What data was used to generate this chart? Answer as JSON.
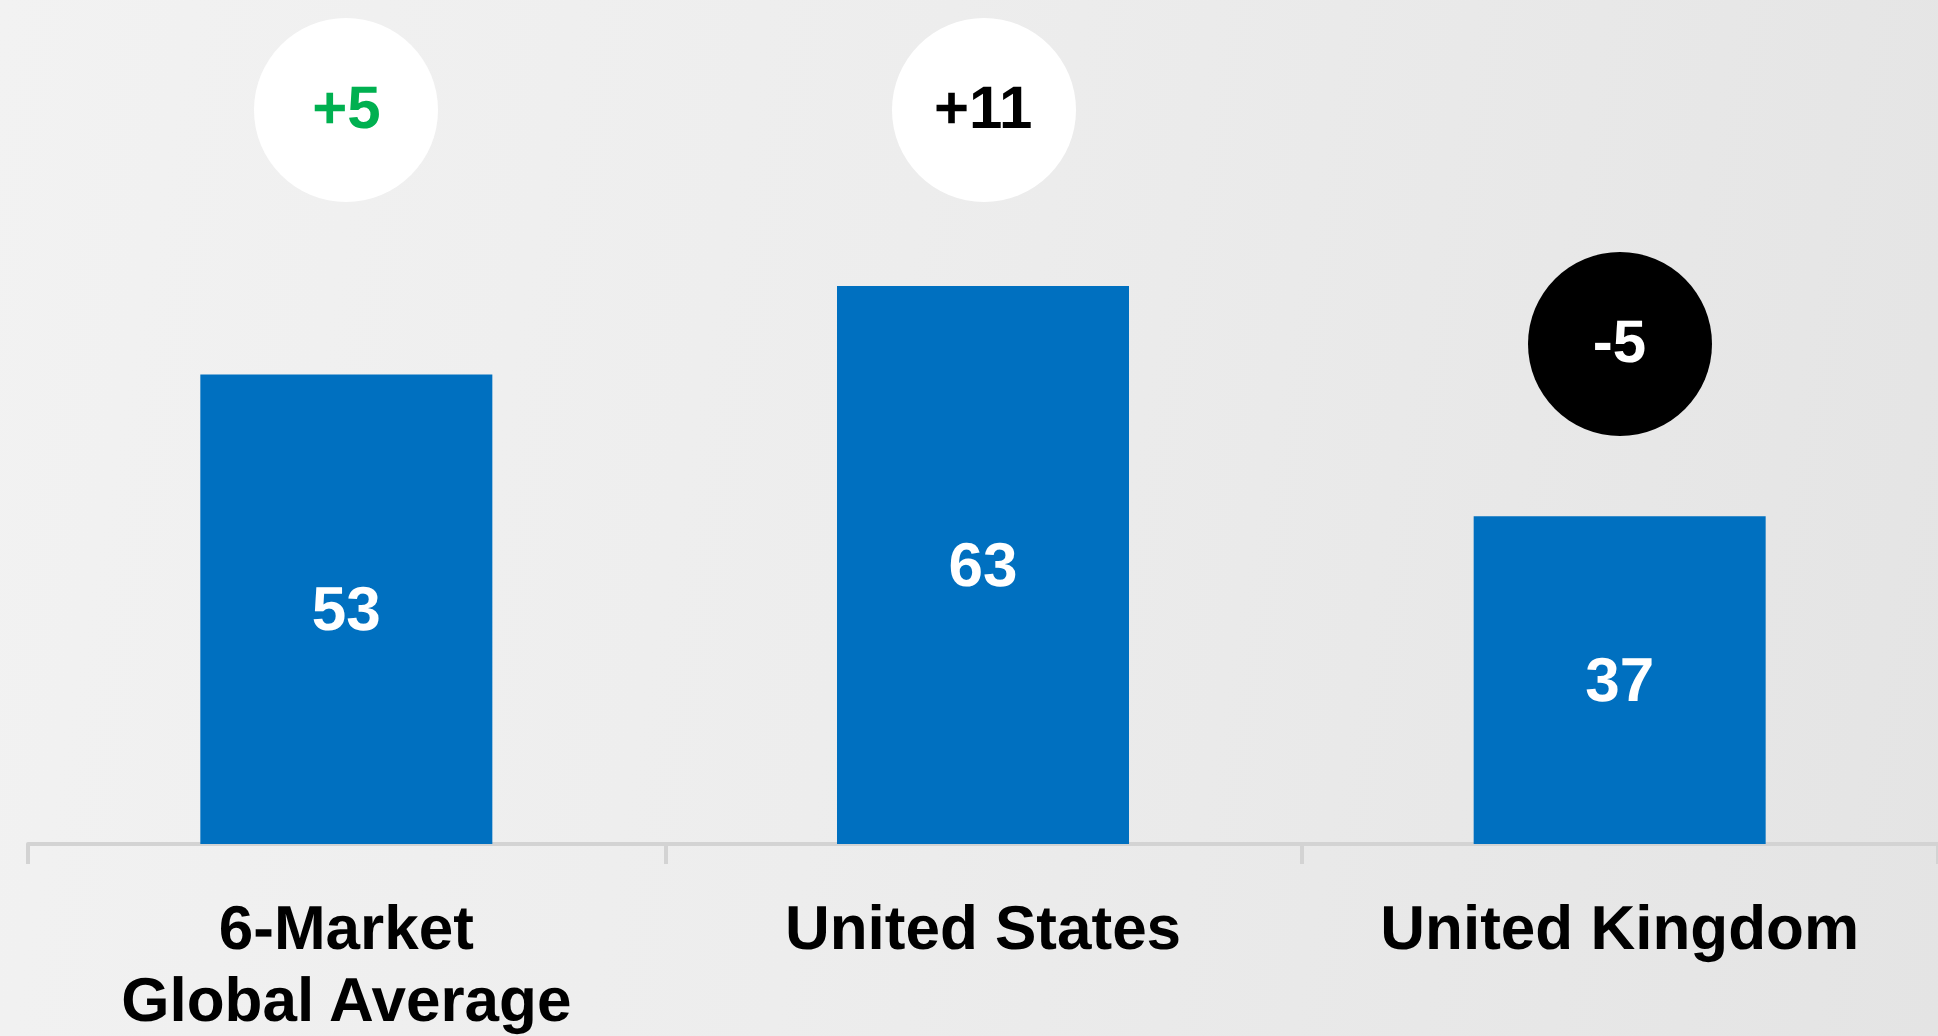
{
  "chart_data": {
    "type": "bar",
    "categories": [
      "6-Market\nGlobal Average",
      "United States",
      "United Kingdom"
    ],
    "values": [
      53,
      63,
      37
    ],
    "color": "#0070c0",
    "data_labels": true,
    "tick_labels": "x",
    "annotations": [
      "+5",
      "+11",
      "-5"
    ]
  }
}
